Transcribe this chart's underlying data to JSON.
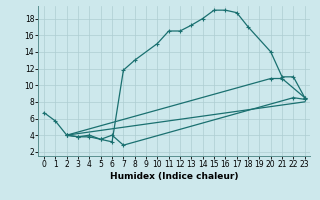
{
  "title": "",
  "xlabel": "Humidex (Indice chaleur)",
  "xlim": [
    -0.5,
    23.5
  ],
  "ylim": [
    1.5,
    19.5
  ],
  "xticks": [
    0,
    1,
    2,
    3,
    4,
    5,
    6,
    7,
    8,
    9,
    10,
    11,
    12,
    13,
    14,
    15,
    16,
    17,
    18,
    19,
    20,
    21,
    22,
    23
  ],
  "yticks": [
    2,
    4,
    6,
    8,
    10,
    12,
    14,
    16,
    18
  ],
  "bg_color": "#cde8ec",
  "grid_color": "#aecdd2",
  "line_color": "#1a7070",
  "line1_x": [
    0,
    1,
    2,
    3,
    4,
    5,
    6,
    7,
    8,
    10,
    11,
    12,
    13,
    14,
    15,
    16,
    17,
    18,
    20,
    21,
    22,
    23
  ],
  "line1_y": [
    6.7,
    5.7,
    4.0,
    3.8,
    3.8,
    3.5,
    3.2,
    11.8,
    13.0,
    15.0,
    16.5,
    16.5,
    17.2,
    18.0,
    19.0,
    19.0,
    18.7,
    17.0,
    14.0,
    11.0,
    11.0,
    8.5
  ],
  "line2_x": [
    2,
    3,
    4,
    5,
    6,
    7,
    22,
    23
  ],
  "line2_y": [
    4.0,
    3.8,
    4.0,
    3.5,
    4.0,
    2.8,
    8.5,
    8.3
  ],
  "line3_x": [
    2,
    23
  ],
  "line3_y": [
    4.0,
    8.0
  ],
  "line4_x": [
    2,
    20,
    21,
    23
  ],
  "line4_y": [
    4.0,
    10.8,
    10.8,
    8.5
  ],
  "tick_fontsize": 5.5,
  "xlabel_fontsize": 6.5
}
